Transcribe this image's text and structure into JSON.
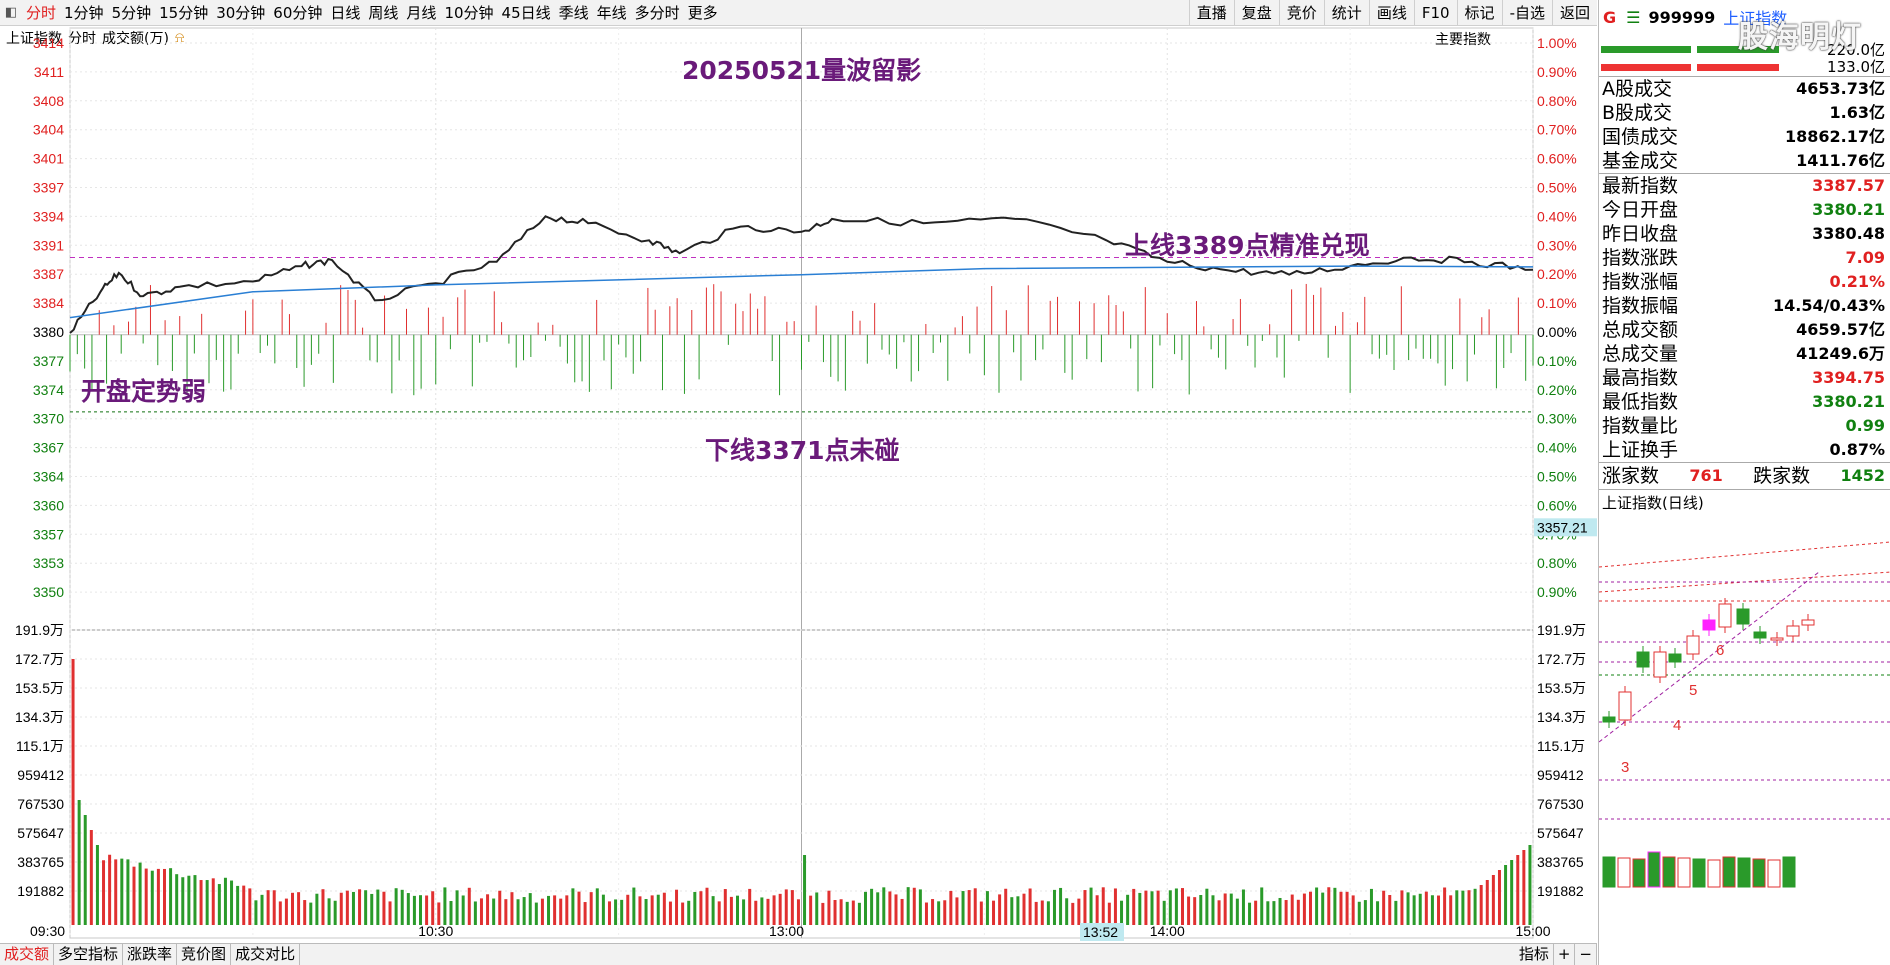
{
  "topbar": {
    "tabs": [
      "分时",
      "1分钟",
      "5分钟",
      "15分钟",
      "30分钟",
      "60分钟",
      "日线",
      "周线",
      "月线",
      "10分钟",
      "45日线",
      "季线",
      "年线",
      "多分时",
      "更多"
    ],
    "right": [
      "直播",
      "复盘",
      "竞价",
      "统计",
      "画线",
      "F10",
      "标记",
      "-自选",
      "返回"
    ]
  },
  "subbar": {
    "index_name": "上证指数",
    "mode": "分时",
    "volume_label": "成交额(万)",
    "main_indicator": "主要指数"
  },
  "annotations": {
    "title": "20250521量波留影",
    "upper": "上线3389点精准兑现",
    "open": "开盘定势弱",
    "lower": "下线3371点未碰"
  },
  "price_axis": [
    "3414",
    "3411",
    "3408",
    "3404",
    "3401",
    "3397",
    "3394",
    "3391",
    "3387",
    "3384",
    "3380",
    "3377",
    "3374",
    "3370",
    "3367",
    "3364",
    "3360",
    "3357",
    "3353",
    "3350"
  ],
  "pct_axis": [
    "1.00%",
    "0.90%",
    "0.80%",
    "0.70%",
    "0.60%",
    "0.50%",
    "0.40%",
    "0.30%",
    "0.20%",
    "0.10%",
    "0.00%",
    "0.10%",
    "0.20%",
    "0.30%",
    "0.40%",
    "0.50%",
    "0.60%",
    "0.70%",
    "0.80%",
    "0.90%"
  ],
  "price_cursor_label": "3357.21",
  "vol_axis_left": [
    "191.9万",
    "172.7万",
    "153.5万",
    "134.3万",
    "115.1万",
    "959412",
    "767530",
    "575647",
    "383765",
    "191882"
  ],
  "vol_axis_right": [
    "191.9万",
    "172.7万",
    "153.5万",
    "134.3万",
    "115.1万",
    "959412",
    "767530",
    "575647",
    "383765",
    "191882"
  ],
  "time_axis": [
    "09:30",
    "10:30",
    "13:00",
    "14:00",
    "15:00"
  ],
  "time_cursor": "13:52",
  "chart_data": {
    "type": "line",
    "title": "上证指数",
    "prev_close": 3380.48,
    "ylim": [
      3350,
      3414
    ],
    "lines": {
      "upper": 3389,
      "lower": 3371
    },
    "price_series": [
      {
        "x": "09:30",
        "y": 3380.2
      },
      {
        "x": "09:35",
        "y": 3385.0
      },
      {
        "x": "09:38",
        "y": 3387.2
      },
      {
        "x": "09:42",
        "y": 3384.5
      },
      {
        "x": "09:48",
        "y": 3385.6
      },
      {
        "x": "10:00",
        "y": 3386.2
      },
      {
        "x": "10:08",
        "y": 3388.0
      },
      {
        "x": "10:13",
        "y": 3388.7
      },
      {
        "x": "10:20",
        "y": 3384.0
      },
      {
        "x": "10:30",
        "y": 3386.0
      },
      {
        "x": "10:40",
        "y": 3388.5
      },
      {
        "x": "10:48",
        "y": 3393.8
      },
      {
        "x": "10:55",
        "y": 3393.0
      },
      {
        "x": "11:05",
        "y": 3391.0
      },
      {
        "x": "11:10",
        "y": 3389.5
      },
      {
        "x": "11:20",
        "y": 3392.6
      },
      {
        "x": "11:30",
        "y": 3392.0
      },
      {
        "x": "13:05",
        "y": 3393.5
      },
      {
        "x": "13:20",
        "y": 3393.0
      },
      {
        "x": "13:35",
        "y": 3393.5
      },
      {
        "x": "13:50",
        "y": 3391.0
      },
      {
        "x": "14:00",
        "y": 3388.5
      },
      {
        "x": "14:10",
        "y": 3387.5
      },
      {
        "x": "14:20",
        "y": 3387.0
      },
      {
        "x": "14:30",
        "y": 3388.0
      },
      {
        "x": "14:40",
        "y": 3389.0
      },
      {
        "x": "14:50",
        "y": 3388.5
      },
      {
        "x": "15:00",
        "y": 3387.57
      }
    ],
    "avg_series": [
      {
        "x": "09:30",
        "y": 3382.0
      },
      {
        "x": "10:00",
        "y": 3385.0
      },
      {
        "x": "10:30",
        "y": 3385.8
      },
      {
        "x": "11:30",
        "y": 3387.0
      },
      {
        "x": "13:30",
        "y": 3387.7
      },
      {
        "x": "14:30",
        "y": 3388.0
      },
      {
        "x": "15:00",
        "y": 3387.9
      }
    ],
    "volume_peak": "172.7万"
  },
  "panel": {
    "g": "G",
    "code": "999999",
    "name": "上证指数",
    "watermark": "股海明灯",
    "r1": "220.0亿",
    "r2": "133.0亿",
    "rows1": [
      {
        "k": "A股成交",
        "v": "4653.73亿",
        "c": "blk"
      },
      {
        "k": "B股成交",
        "v": "1.63亿",
        "c": "blk"
      },
      {
        "k": "国债成交",
        "v": "18862.17亿",
        "c": "blk"
      },
      {
        "k": "基金成交",
        "v": "1411.76亿",
        "c": "blk"
      }
    ],
    "rows2": [
      {
        "k": "最新指数",
        "v": "3387.57",
        "c": "red"
      },
      {
        "k": "今日开盘",
        "v": "3380.21",
        "c": "green"
      },
      {
        "k": "昨日收盘",
        "v": "3380.48",
        "c": "blk"
      },
      {
        "k": "指数涨跌",
        "v": "7.09",
        "c": "red"
      },
      {
        "k": "指数涨幅",
        "v": "0.21%",
        "c": "red"
      },
      {
        "k": "指数振幅",
        "v": "14.54/0.43%",
        "c": "blk"
      },
      {
        "k": "总成交额",
        "v": "4659.57亿",
        "c": "blk"
      },
      {
        "k": "总成交量",
        "v": "41249.6万",
        "c": "blk"
      },
      {
        "k": "最高指数",
        "v": "3394.75",
        "c": "red"
      },
      {
        "k": "最低指数",
        "v": "3380.21",
        "c": "green"
      },
      {
        "k": "指数量比",
        "v": "0.99",
        "c": "green"
      },
      {
        "k": "上证换手",
        "v": "0.87%",
        "c": "blk"
      }
    ],
    "up_label": "涨家数",
    "up_count": "761",
    "down_label": "跌家数",
    "down_count": "1452",
    "daily_label": "上证指数(日线)",
    "wave_labels": [
      "3",
      "4",
      "5",
      "6"
    ]
  },
  "bottombar": {
    "tabs": [
      "成交额",
      "多空指标",
      "涨跌率",
      "竞价图",
      "成交对比"
    ],
    "right": [
      "指标",
      "+",
      "−"
    ]
  }
}
